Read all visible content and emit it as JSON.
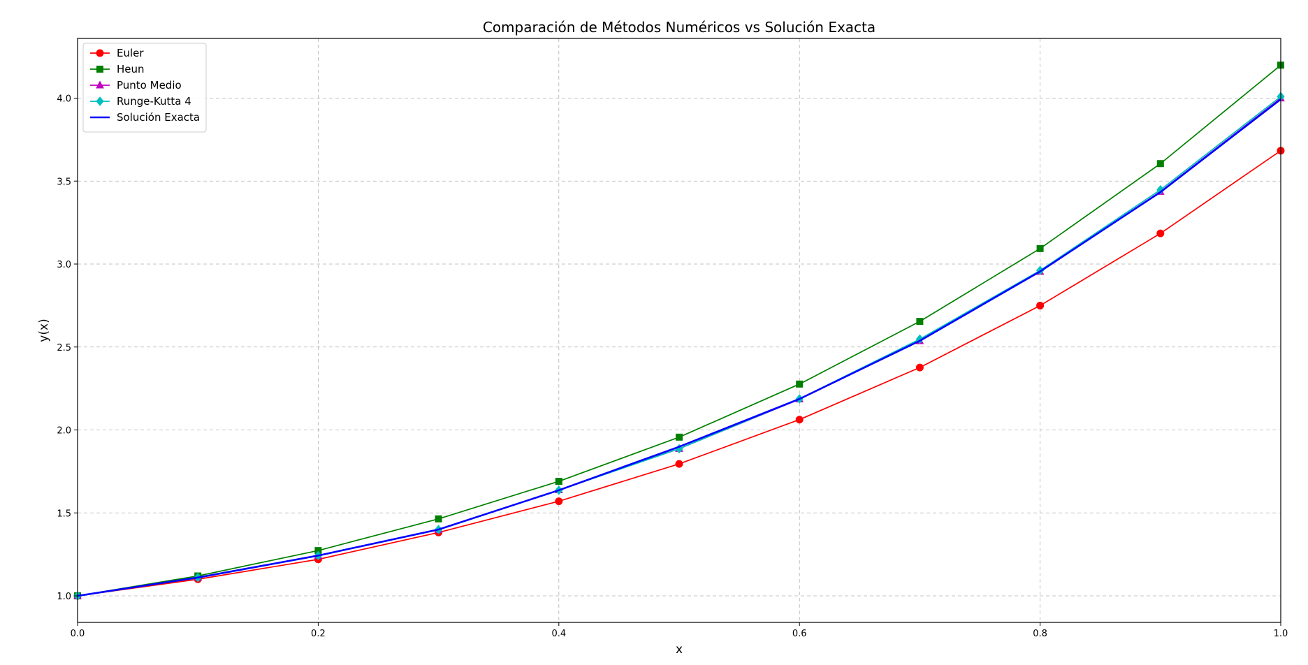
{
  "chart_data": {
    "type": "line",
    "title": "Comparación de Métodos Numéricos vs Solución Exacta",
    "xlabel": "x",
    "ylabel": "y(x)",
    "xlim": [
      0.0,
      1.0
    ],
    "ylim": [
      0.84,
      4.36
    ],
    "x_ticks": [
      "0.0",
      "0.2",
      "0.4",
      "0.6",
      "0.8",
      "1.0"
    ],
    "y_ticks": [
      "1.0",
      "1.5",
      "2.0",
      "2.5",
      "3.0",
      "3.5",
      "4.0"
    ],
    "grid": true,
    "legend_position": "top-left",
    "series": [
      {
        "name": "Euler",
        "color": "#ff0000",
        "marker": "circle",
        "x": [
          0.0,
          0.1,
          0.2,
          0.3,
          0.4,
          0.5,
          0.6,
          0.7,
          0.8,
          0.9,
          1.0
        ],
        "y": [
          1.0,
          1.1,
          1.22,
          1.382,
          1.5702,
          1.7954,
          2.0623,
          2.3763,
          2.7497,
          3.1846,
          3.6834
        ]
      },
      {
        "name": "Heun",
        "color": "#008000",
        "marker": "square",
        "x": [
          0.0,
          0.1,
          0.2,
          0.3,
          0.4,
          0.5,
          0.6,
          0.7,
          0.8,
          0.9,
          1.0
        ],
        "y": [
          1.0,
          1.12,
          1.273,
          1.464,
          1.6904,
          1.9565,
          2.2765,
          2.6541,
          3.0934,
          3.6053,
          4.1988
        ]
      },
      {
        "name": "Punto Medio",
        "color": "#c000c0",
        "marker": "triangle",
        "x": [
          0.0,
          0.1,
          0.2,
          0.3,
          0.4,
          0.5,
          0.6,
          0.7,
          0.8,
          0.9,
          1.0
        ],
        "y": [
          1.0,
          1.11,
          1.2421,
          1.3985,
          1.6384,
          1.8869,
          2.1855,
          2.5363,
          2.9542,
          3.4365,
          3.9995
        ]
      },
      {
        "name": "Runge-Kutta 4",
        "color": "#00bfbf",
        "marker": "diamond",
        "x": [
          0.0,
          0.1,
          0.2,
          0.3,
          0.4,
          0.5,
          0.6,
          0.7,
          0.8,
          0.9,
          1.0
        ],
        "y": [
          1.0,
          1.1103,
          1.2428,
          1.3997,
          1.6365,
          1.8864,
          2.1871,
          2.5475,
          2.9613,
          3.4474,
          4.0095
        ]
      },
      {
        "name": "Solución Exacta",
        "color": "#0000ff",
        "marker": "none",
        "x": [
          0.0,
          0.1,
          0.2,
          0.3,
          0.4,
          0.5,
          0.6,
          0.7,
          0.8,
          0.9,
          1.0
        ],
        "y": [
          1.0,
          1.1103,
          1.2428,
          1.4,
          1.6366,
          1.8987,
          2.1868,
          2.5373,
          2.9554,
          3.4334,
          3.9934
        ]
      }
    ]
  }
}
